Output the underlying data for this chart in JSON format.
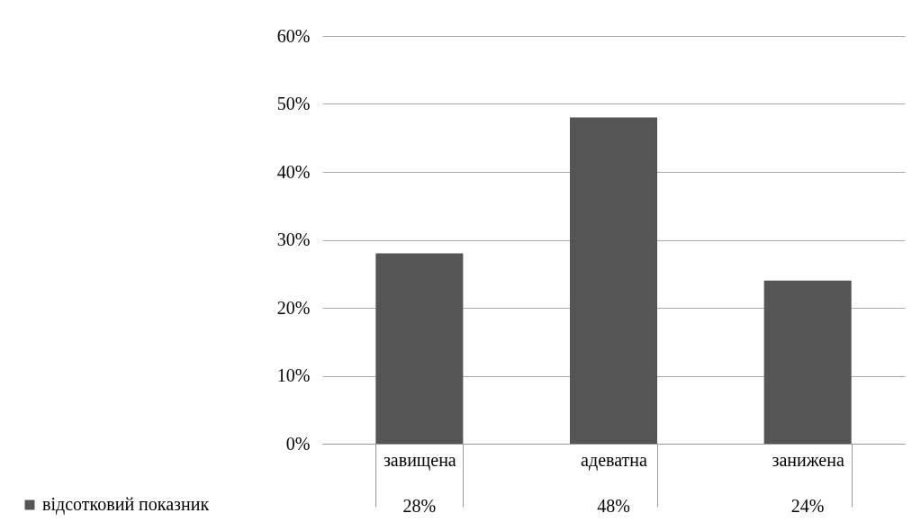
{
  "chart_data": {
    "type": "bar",
    "categories": [
      "завищена",
      "адеватна",
      "занижена"
    ],
    "series": [
      {
        "name": "відсотковий показник",
        "color": "#555555",
        "values": [
          28,
          48,
          24
        ],
        "value_labels": [
          "28%",
          "48%",
          "24%"
        ]
      }
    ],
    "ylim": [
      0,
      60
    ],
    "yticks": [
      {
        "value": 0,
        "label": "0%"
      },
      {
        "value": 10,
        "label": "10%"
      },
      {
        "value": 20,
        "label": "20%"
      },
      {
        "value": 30,
        "label": "30%"
      },
      {
        "value": 40,
        "label": "40%"
      },
      {
        "value": 50,
        "label": "50%"
      },
      {
        "value": 60,
        "label": "60%"
      }
    ],
    "grid": "y",
    "legend": "bottom left"
  }
}
